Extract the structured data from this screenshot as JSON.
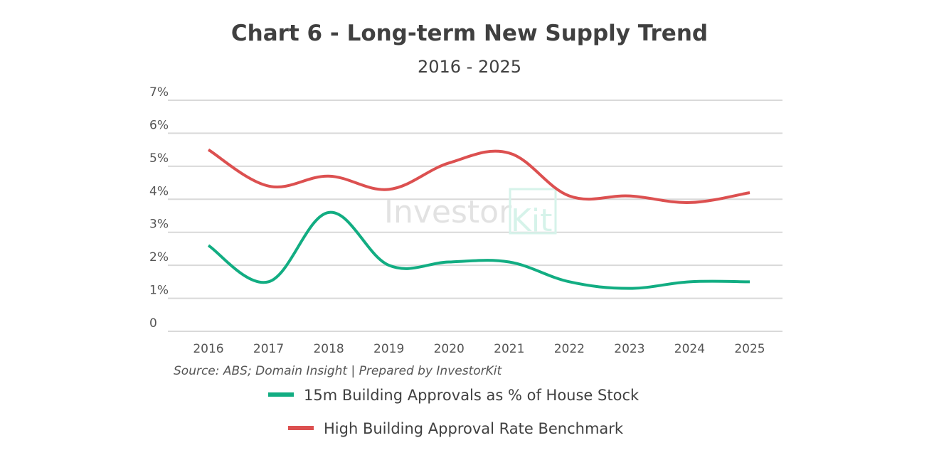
{
  "chart_data": {
    "type": "line",
    "title": "Chart 6 - Long-term New Supply Trend",
    "subtitle": "2016 - 2025",
    "x": [
      "2016",
      "2017",
      "2018",
      "2019",
      "2020",
      "2021",
      "2022",
      "2023",
      "2024",
      "2025"
    ],
    "ylim": [
      0,
      7
    ],
    "yticks": [
      "0",
      "1%",
      "2%",
      "3%",
      "4%",
      "5%",
      "6%",
      "7%"
    ],
    "grid": true,
    "legend_position": "bottom",
    "source": "Source: ABS; Domain Insight | Prepared by InvestorKit",
    "watermark": "InvestorKit",
    "series": [
      {
        "name": "15m Building Approvals as % of House Stock",
        "color": "#12ad82",
        "values": [
          2.6,
          1.5,
          3.6,
          2.0,
          2.1,
          2.1,
          1.5,
          1.3,
          1.5,
          1.5
        ]
      },
      {
        "name": "High Building Approval Rate Benchmark",
        "color": "#dc5050",
        "values": [
          5.5,
          4.4,
          4.7,
          4.3,
          5.1,
          5.4,
          4.1,
          4.1,
          3.9,
          4.2
        ]
      }
    ]
  }
}
